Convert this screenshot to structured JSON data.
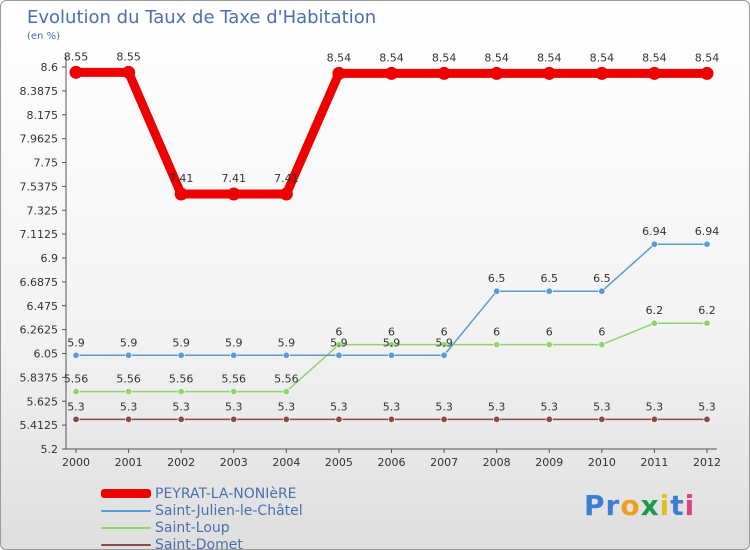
{
  "chart_data": {
    "type": "line",
    "title": "Evolution du Taux de Taxe d'Habitation",
    "subtitle": "(en %)",
    "x": [
      "2000",
      "2001",
      "2002",
      "2003",
      "2004",
      "2005",
      "2006",
      "2007",
      "2008",
      "2009",
      "2010",
      "2011",
      "2012"
    ],
    "y_ticks": [
      "8.6",
      "8.3875",
      "8.175",
      "7.9625",
      "7.75",
      "7.5375",
      "7.325",
      "7.1125",
      "6.9",
      "6.6875",
      "6.475",
      "6.2625",
      "6.05",
      "5.8375",
      "5.625",
      "5.4125",
      "5.2"
    ],
    "ylim": [
      5.2,
      8.6
    ],
    "grid": false,
    "legend_position": "bottom-left",
    "series": [
      {
        "name": "PEYRAT-LA-NONIèRE",
        "color": "#ee0000",
        "values": [
          8.55,
          8.55,
          7.41,
          7.41,
          7.41,
          8.54,
          8.54,
          8.54,
          8.54,
          8.54,
          8.54,
          8.54,
          8.54
        ],
        "labels": [
          "8.55",
          "8.55",
          "7.41",
          "7.41",
          "7.41",
          "8.54",
          "8.54",
          "8.54",
          "8.54",
          "8.54",
          "8.54",
          "8.54",
          "8.54"
        ]
      },
      {
        "name": "Saint-Julien-le-Châtel",
        "color": "#5b9bd5",
        "values": [
          5.9,
          5.9,
          5.9,
          5.9,
          5.9,
          5.9,
          5.9,
          5.9,
          6.5,
          6.5,
          6.5,
          6.94,
          6.94
        ],
        "labels": [
          "5.9",
          "5.9",
          "5.9",
          "5.9",
          "5.9",
          "5.9",
          "5.9",
          "5.9",
          "6.5",
          "6.5",
          "6.5",
          "6.94",
          "6.94"
        ]
      },
      {
        "name": "Saint-Loup",
        "color": "#8fd46a",
        "values": [
          5.56,
          5.56,
          5.56,
          5.56,
          5.56,
          6.0,
          6.0,
          6.0,
          6.0,
          6.0,
          6.0,
          6.2,
          6.2
        ],
        "labels": [
          "5.56",
          "5.56",
          "5.56",
          "5.56",
          "5.56",
          "6",
          "6",
          "6",
          "6",
          "6",
          "6",
          "6.2",
          "6.2"
        ]
      },
      {
        "name": "Saint-Domet",
        "color": "#8b4a4a",
        "values": [
          5.3,
          5.3,
          5.3,
          5.3,
          5.3,
          5.3,
          5.3,
          5.3,
          5.3,
          5.3,
          5.3,
          5.3,
          5.3
        ],
        "labels": [
          "5.3",
          "5.3",
          "5.3",
          "5.3",
          "5.3",
          "5.3",
          "5.3",
          "5.3",
          "5.3",
          "5.3",
          "5.3",
          "5.3",
          "5.3"
        ]
      }
    ]
  },
  "logo": {
    "letters": [
      "P",
      "r",
      "o",
      "x",
      "i",
      "t",
      "i"
    ],
    "colors": [
      "#3a7fd5",
      "#3a7fd5",
      "#f0a020",
      "#1a9a4a",
      "#e0c020",
      "#3a7fd5",
      "#e04080"
    ]
  }
}
